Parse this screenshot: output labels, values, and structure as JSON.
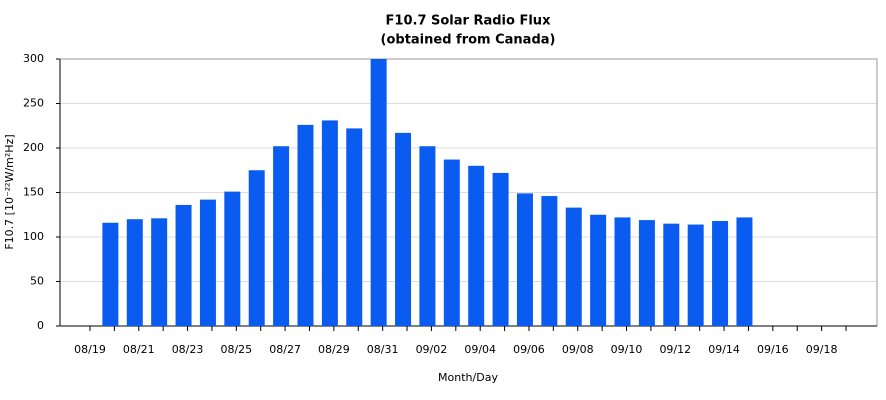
{
  "chart_data": {
    "type": "bar",
    "title": "F10.7 Solar Radio Flux",
    "subtitle": "(obtained from Canada)",
    "x_label": "Month/Day",
    "y_label": "F10.7 [10⁻²²W/m²Hz]",
    "categories": [
      "08/19",
      null,
      "08/21",
      null,
      "08/23",
      null,
      "08/25",
      null,
      "08/27",
      null,
      "08/29",
      null,
      "08/31",
      null,
      "09/02",
      null,
      "09/04",
      null,
      "09/06",
      null,
      "09/08",
      null,
      "09/10",
      null,
      "09/12",
      null,
      "09/14",
      null,
      "09/16",
      null,
      "09/18",
      null
    ],
    "values": [
      null,
      116,
      120,
      121,
      136,
      142,
      151,
      175,
      202,
      226,
      231,
      222,
      300,
      217,
      202,
      187,
      180,
      172,
      149,
      146,
      133,
      125,
      122,
      119,
      115,
      114,
      118,
      122,
      null,
      null,
      null,
      null
    ],
    "color": "#0a5cf0",
    "ylim": [
      0,
      300
    ],
    "yticks": [
      0,
      50,
      100,
      150,
      200,
      250,
      300
    ],
    "grid": true
  }
}
